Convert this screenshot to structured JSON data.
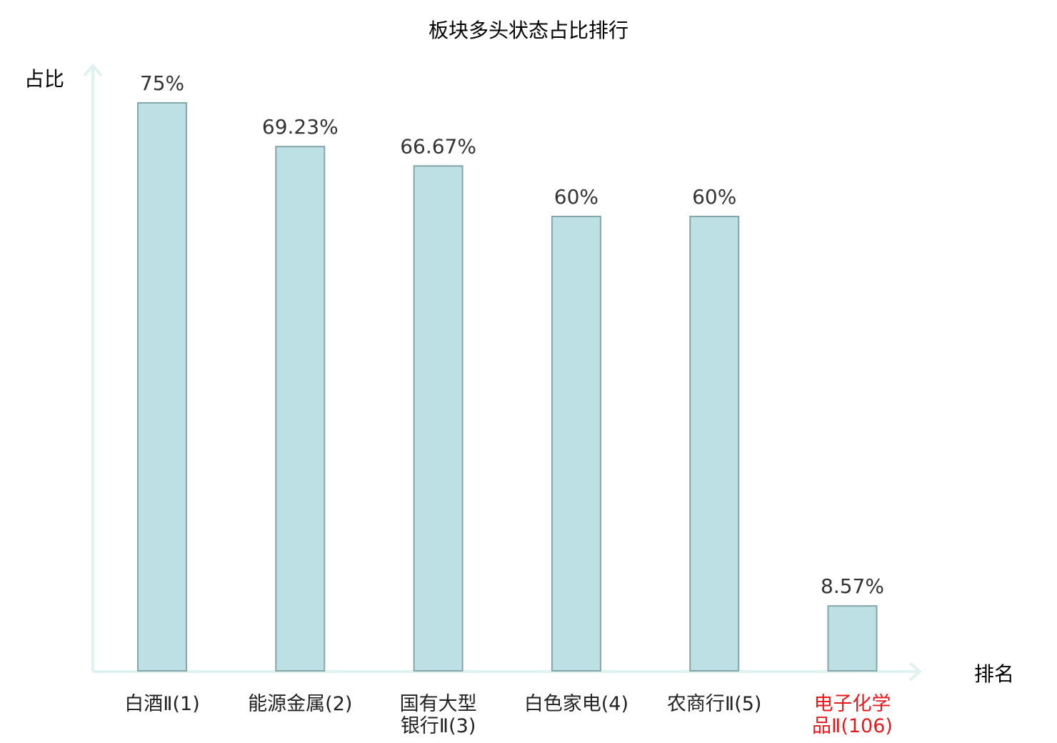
{
  "chart_data": {
    "type": "bar",
    "title": "板块多头状态占比排行",
    "ylabel": "占比",
    "xlabel": "排名",
    "categories": [
      [
        "白酒Ⅱ(1)"
      ],
      [
        "能源金属(2)"
      ],
      [
        "国有大型",
        "银行Ⅱ(3)"
      ],
      [
        "白色家电(4)"
      ],
      [
        "农商行Ⅱ(5)"
      ],
      [
        "电子化学",
        "品Ⅱ(106)"
      ]
    ],
    "values": [
      75,
      69.23,
      66.67,
      60,
      60,
      8.57
    ],
    "value_labels": [
      "75%",
      "69.23%",
      "66.67%",
      "60%",
      "60%",
      "8.57%"
    ],
    "highlight_index": 5,
    "ylim": [
      0,
      80
    ],
    "grid": false,
    "colors": {
      "bar_fill": "#bce0e3",
      "bar_stroke": "#85a6a9",
      "axis": "#e0f2ef",
      "highlight_label": "#e8191b"
    }
  }
}
